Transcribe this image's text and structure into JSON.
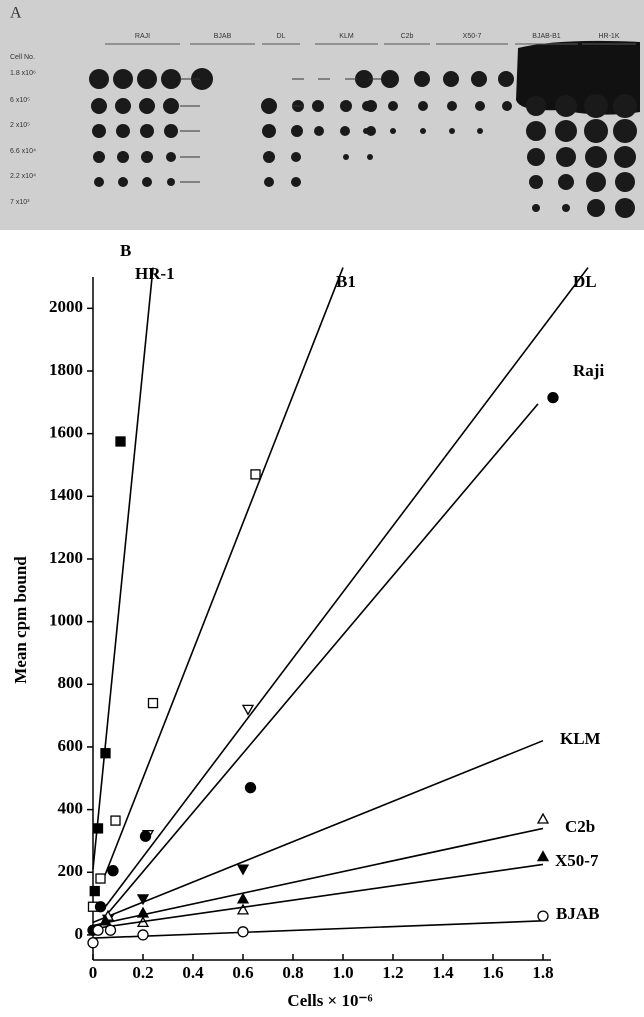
{
  "panel_a": {
    "label": "A",
    "cell_no_label": "Cell No.",
    "columns": [
      "RAJI",
      "BJAB",
      "DL",
      "KLM",
      "C2b",
      "X50-7",
      "BJAB-B1",
      "HR-1K"
    ],
    "rows": [
      "1.8 x10⁶",
      "6   x10⁵",
      "2   x10⁵",
      "6.6 x10⁴",
      "2.2 x10⁴",
      "7   x10³"
    ]
  },
  "chart_data": {
    "type": "scatter",
    "panel_label": "B",
    "x_label": "Cells × 10⁻⁶",
    "y_label": "Mean cpm bound",
    "xlim": [
      0,
      1.8
    ],
    "ylim": [
      -80,
      2100
    ],
    "xticks": [
      0,
      0.2,
      0.4,
      0.6,
      0.8,
      {
        "value": 1,
        "label": "1.0"
      },
      1.2,
      1.4,
      1.6,
      1.8
    ],
    "yticks": [
      0,
      200,
      400,
      600,
      800,
      1000,
      1200,
      1400,
      1600,
      1800,
      2000
    ],
    "series": [
      {
        "name": "HR-1",
        "marker": "filled-square",
        "x": [
          0.11,
          0.05,
          0.02,
          0.007
        ],
        "values": [
          1575,
          580,
          340,
          140
        ],
        "fit_x": [
          0,
          0.24
        ],
        "fit_y": [
          210,
          2130
        ]
      },
      {
        "name": "B1",
        "marker": "open-square",
        "x": [
          0.65,
          0.24,
          0.09,
          0.03,
          0
        ],
        "values": [
          1470,
          740,
          365,
          180,
          90
        ],
        "fit_x": [
          0.04,
          1.0
        ],
        "fit_y": [
          175,
          2130
        ]
      },
      {
        "name": "DL",
        "marker": "open-down-triangle",
        "x": [
          0.62,
          0.22
        ],
        "values": [
          720,
          320
        ],
        "fit_x": [
          0.04,
          1.98
        ],
        "fit_y": [
          80,
          2130
        ]
      },
      {
        "name": "Raji",
        "marker": "filled-circle",
        "x": [
          1.84,
          0.63,
          0.21,
          0.08,
          0.03,
          0
        ],
        "values": [
          1715,
          470,
          315,
          205,
          90,
          15
        ],
        "fit_x": [
          0.05,
          1.78
        ],
        "fit_y": [
          60,
          1695
        ]
      },
      {
        "name": "KLM",
        "marker": "filled-down-triangle",
        "x": [
          0.6,
          0.2,
          0.06
        ],
        "values": [
          210,
          115,
          50
        ],
        "fit_x": [
          0,
          1.8
        ],
        "fit_y": [
          40,
          620
        ]
      },
      {
        "name": "C2b",
        "marker": "open-triangle",
        "x": [
          1.8,
          0.6,
          0.2,
          0.06
        ],
        "values": [
          370,
          80,
          40,
          60
        ],
        "fit_x": [
          0,
          1.8
        ],
        "fit_y": [
          30,
          340
        ]
      },
      {
        "name": "X50-7",
        "marker": "filled-triangle",
        "x": [
          1.8,
          0.6,
          0.2,
          0.05
        ],
        "values": [
          250,
          115,
          70,
          45
        ],
        "fit_x": [
          0,
          1.8
        ],
        "fit_y": [
          20,
          225
        ]
      },
      {
        "name": "BJAB",
        "marker": "open-circle",
        "x": [
          1.8,
          0.6,
          0.2,
          0.07,
          0.02,
          0
        ],
        "values": [
          60,
          10,
          0,
          15,
          15,
          -25
        ],
        "fit_x": [
          0,
          1.8
        ],
        "fit_y": [
          -10,
          45
        ]
      }
    ]
  }
}
